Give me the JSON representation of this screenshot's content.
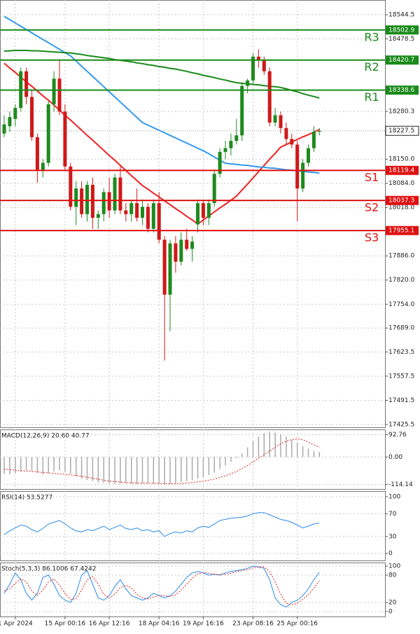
{
  "chart_data": [
    {
      "type": "candlestick",
      "categories": [
        null,
        null,
        "1 Apr 2024",
        null,
        null,
        null,
        null,
        null,
        null,
        null,
        null,
        "15 Apr 00:16",
        null,
        null,
        null,
        null,
        null,
        null,
        null,
        "16 Apr 12:16",
        null,
        null,
        null,
        null,
        null,
        null,
        null,
        null,
        "18 Apr 04:16",
        null,
        null,
        null,
        null,
        null,
        null,
        null,
        "19 Apr 16:16",
        null,
        null,
        null,
        null,
        null,
        null,
        null,
        null,
        "23 Apr 08:16",
        null,
        null,
        null,
        null,
        null,
        null,
        null,
        "25 Apr 00:16",
        null,
        null,
        null,
        null
      ],
      "open": [
        18220,
        18240,
        18260,
        18290,
        18390,
        18320,
        18210,
        18120,
        18140,
        18300,
        18370,
        18280,
        18130,
        18020,
        18070,
        18000,
        18080,
        17990,
        18000,
        18060,
        18010,
        18100,
        18010,
        18000,
        18030,
        17990,
        18020,
        17960,
        18030,
        17930,
        17780,
        17920,
        17870,
        17930,
        17905,
        17972,
        18030,
        17990,
        18030,
        18110,
        18170,
        18180,
        18200,
        18215,
        18350,
        18365,
        18430,
        18420,
        18390,
        18250,
        18270,
        18235,
        18205,
        18190,
        18070,
        18140,
        18180,
        18225
      ],
      "high": [
        18270,
        18280,
        18300,
        18400,
        18400,
        18340,
        18220,
        18150,
        18310,
        18390,
        18420,
        18300,
        18140,
        18090,
        18090,
        18090,
        18100,
        18010,
        18070,
        18100,
        18110,
        18130,
        18030,
        18040,
        18070,
        18040,
        18030,
        18040,
        18060,
        17940,
        17930,
        17940,
        17950,
        17960,
        17940,
        18040,
        18040,
        18040,
        18120,
        18180,
        18200,
        18220,
        18260,
        18360,
        18370,
        18440,
        18450,
        18430,
        18400,
        18290,
        18280,
        18250,
        18220,
        18200,
        18150,
        18190,
        18240,
        18235
      ],
      "low": [
        18210,
        18225,
        18240,
        18280,
        18300,
        18200,
        18085,
        18100,
        18130,
        18280,
        18270,
        18120,
        18010,
        17970,
        17990,
        17980,
        17960,
        17960,
        17980,
        17990,
        18000,
        18000,
        17980,
        17980,
        17980,
        17970,
        17950,
        17950,
        17920,
        17600,
        17680,
        17840,
        17860,
        17900,
        17870,
        17950,
        17970,
        17970,
        18020,
        18100,
        18150,
        18160,
        18190,
        18200,
        18330,
        18355,
        18400,
        18380,
        18240,
        18240,
        18220,
        18190,
        18180,
        17980,
        18060,
        18130,
        18170,
        18215
      ],
      "close": [
        18245,
        18265,
        18290,
        18390,
        18320,
        18210,
        18120,
        18140,
        18300,
        18370,
        18280,
        18130,
        18020,
        18070,
        18000,
        18080,
        17990,
        18000,
        18060,
        18010,
        18100,
        18010,
        18000,
        18030,
        17990,
        18020,
        17960,
        18030,
        17930,
        17780,
        17920,
        17870,
        17930,
        17905,
        17925,
        18030,
        17990,
        18030,
        18110,
        18170,
        18180,
        18200,
        18215,
        18350,
        18365,
        18430,
        18420,
        18390,
        18250,
        18270,
        18235,
        18205,
        18190,
        18070,
        18140,
        18180,
        18225,
        18227.5
      ],
      "up_color": "#1e8a1e",
      "down_color": "#d01818",
      "lines": [
        {
          "color": "#ee2222",
          "values": [
            18412,
            18399,
            18387,
            18374,
            18361,
            18349,
            18336,
            18323,
            18311,
            18298,
            18284,
            18270,
            18257,
            18243,
            18229,
            18215,
            18202,
            18188,
            18174,
            18160,
            18147,
            18133,
            18119,
            18105,
            18092,
            18078,
            18068,
            18057,
            18047,
            18036,
            18026,
            18015,
            18005,
            17994,
            17984,
            17973,
            17984,
            17995,
            18006,
            18017,
            18027,
            18038,
            18049,
            18066,
            18082,
            18099,
            18116,
            18133,
            18150,
            18166,
            18183,
            18190,
            18197,
            18204,
            18211,
            18217,
            18224,
            18231
          ]
        },
        {
          "color": "#3399ee",
          "values": [
            18540,
            18531,
            18522,
            18513,
            18504,
            18495,
            18486,
            18477,
            18468,
            18459,
            18450,
            18441,
            18432,
            18418,
            18404,
            18390,
            18376,
            18362,
            18348,
            18334,
            18320,
            18306,
            18292,
            18278,
            18264,
            18250,
            18243,
            18236,
            18229,
            18222,
            18215,
            18208,
            18201,
            18194,
            18187,
            18180,
            18173,
            18165,
            18156,
            18147,
            18139,
            18137,
            18136,
            18134,
            18133,
            18131,
            18129,
            18128,
            18126,
            18125,
            18123,
            18121,
            18120,
            18118,
            18117,
            18115,
            18114,
            18112
          ]
        },
        {
          "color": "#1a8a1a",
          "values": [
            18445,
            18446,
            18447,
            18447,
            18447,
            18446,
            18446,
            18445,
            18444,
            18443,
            18442,
            18441,
            18440,
            18438,
            18436,
            18433,
            18431,
            18429,
            18427,
            18425,
            18422,
            18420,
            18418,
            18416,
            18413,
            18411,
            18408,
            18406,
            18403,
            18401,
            18398,
            18396,
            18393,
            18390,
            18386,
            18383,
            18379,
            18376,
            18373,
            18369,
            18366,
            18362,
            18359,
            18357,
            18356,
            18354,
            18353,
            18351,
            18349,
            18348,
            18346,
            18342,
            18338,
            18334,
            18329,
            18325,
            18321,
            18317
          ]
        }
      ],
      "levels": [
        {
          "label": "R3",
          "value": 18502.9,
          "color": "#1a8a1a"
        },
        {
          "label": "R2",
          "value": 18420.7,
          "color": "#1a8a1a"
        },
        {
          "label": "R1",
          "value": 18338.6,
          "color": "#1a8a1a"
        },
        {
          "label": "S1",
          "value": 18119.4,
          "color": "#e01010"
        },
        {
          "label": "S2",
          "value": 18037.3,
          "color": "#e01010"
        },
        {
          "label": "S3",
          "value": 17955.1,
          "color": "#e01010"
        }
      ],
      "last_price": 18227.5,
      "ylim": [
        17417.8,
        18584.7
      ],
      "yticks": [
        18544.5,
        18478.5,
        18280.3,
        {
          "value": 18150,
          "label": "18150.0"
        },
        {
          "value": 18084,
          "label": "18084.0"
        },
        {
          "value": 18018,
          "label": "18018.0"
        },
        {
          "value": 17886,
          "label": "17886.0"
        },
        {
          "value": 17820,
          "label": "17820.0"
        },
        {
          "value": 17754,
          "label": "17754.0"
        },
        {
          "value": 17689,
          "label": "17689.0"
        },
        17623.5,
        17557.5,
        17491.5,
        17425.5
      ],
      "grid": true
    },
    {
      "type": "macd",
      "title": "MACD(12,26,9) 20.60 40.77",
      "values": [
        -70,
        -72,
        -68,
        -60,
        -55,
        -58,
        -65,
        -72,
        -68,
        -60,
        -55,
        -60,
        -70,
        -80,
        -90,
        -95,
        -100,
        -105,
        -108,
        -110,
        -112,
        -110,
        -108,
        -110,
        -112,
        -110,
        -108,
        -110,
        -112,
        -115,
        -112,
        -108,
        -104,
        -100,
        -96,
        -90,
        -85,
        -75,
        -65,
        -50,
        -35,
        -20,
        -5,
        15,
        40,
        65,
        85,
        100,
        105,
        102,
        95,
        85,
        70,
        60,
        45,
        35,
        25,
        20.6
      ],
      "signal": [
        -50,
        -52,
        -55,
        -57,
        -58,
        -60,
        -62,
        -64,
        -66,
        -68,
        -70,
        -72,
        -74,
        -77,
        -80,
        -84,
        -88,
        -92,
        -96,
        -100,
        -102,
        -104,
        -106,
        -107,
        -108,
        -108,
        -109,
        -109,
        -110,
        -110,
        -111,
        -111,
        -110,
        -108,
        -106,
        -103,
        -100,
        -96,
        -91,
        -85,
        -78,
        -70,
        -60,
        -48,
        -35,
        -20,
        -5,
        10,
        25,
        40,
        55,
        65,
        72,
        75,
        72,
        62,
        50,
        40.77
      ],
      "bar_color": "#aaaaaa",
      "signal_color": "#e02020",
      "ylim": [
        -132.7,
        114.4
      ],
      "yticks": [
        92.76,
        {
          "value": 0,
          "label": "0.00"
        },
        -114.14
      ],
      "grid": true
    },
    {
      "type": "line",
      "title": "RSI(14) 53.5277",
      "series": [
        {
          "color": "#2a8ae8",
          "values": [
            33,
            40,
            45,
            50,
            48,
            42,
            38,
            44,
            52,
            55,
            58,
            52,
            45,
            40,
            38,
            42,
            40,
            44,
            48,
            42,
            46,
            50,
            44,
            42,
            45,
            40,
            42,
            38,
            40,
            30,
            35,
            38,
            36,
            40,
            38,
            45,
            48,
            46,
            52,
            58,
            60,
            62,
            63,
            64,
            66,
            70,
            72,
            72,
            68,
            64,
            60,
            58,
            55,
            50,
            45,
            48,
            52,
            53.5277
          ]
        }
      ],
      "ylim": [
        -12.2,
        109.8
      ],
      "yticks": [
        100,
        70,
        30,
        0
      ],
      "grid": true
    },
    {
      "type": "line",
      "title": "Stoch(5,3,3) 86.1006 67.4242",
      "series": [
        {
          "color": "#2a8ae8",
          "values": [
            40,
            60,
            85,
            70,
            40,
            25,
            40,
            75,
            80,
            60,
            35,
            25,
            20,
            40,
            80,
            90,
            60,
            30,
            25,
            35,
            55,
            70,
            50,
            35,
            30,
            25,
            30,
            40,
            35,
            30,
            35,
            45,
            60,
            75,
            85,
            88,
            85,
            80,
            82,
            80,
            85,
            88,
            90,
            92,
            95,
            100,
            98,
            95,
            70,
            30,
            15,
            10,
            20,
            25,
            35,
            50,
            70,
            86.1006
          ]
        },
        {
          "color": "#e02020",
          "dashed": true,
          "values": [
            45,
            50,
            62,
            72,
            65,
            45,
            35,
            47,
            65,
            72,
            58,
            40,
            27,
            28,
            47,
            70,
            77,
            60,
            38,
            30,
            38,
            53,
            58,
            52,
            38,
            30,
            28,
            32,
            35,
            35,
            33,
            37,
            47,
            60,
            73,
            83,
            86,
            84,
            82,
            81,
            82,
            84,
            88,
            90,
            92,
            96,
            98,
            98,
            88,
            65,
            38,
            18,
            15,
            18,
            27,
            37,
            52,
            67.4242
          ]
        }
      ],
      "ylim": [
        -10.8,
        107.7
      ],
      "yticks": [
        100,
        80,
        20,
        0
      ],
      "grid": true
    }
  ]
}
